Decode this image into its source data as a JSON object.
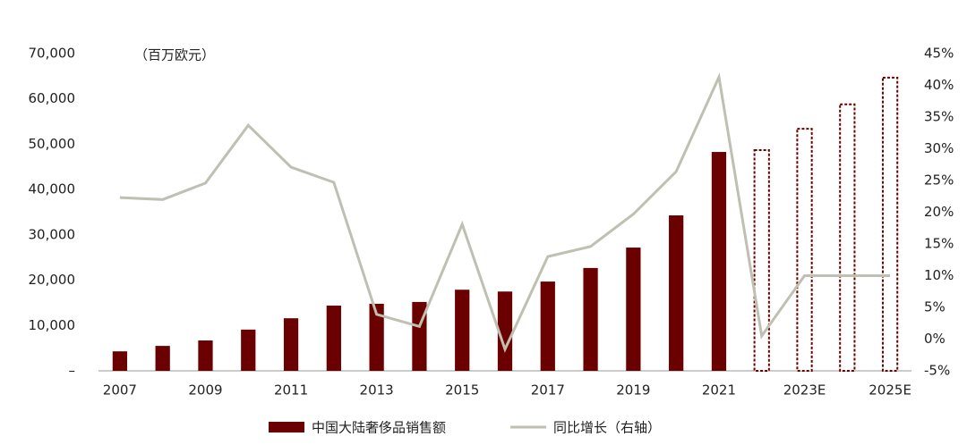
{
  "chart_data": {
    "type": "bar-line",
    "unit_label": "（百万欧元）",
    "categories": [
      "2007",
      null,
      "2009",
      null,
      "2011",
      null,
      "2013",
      null,
      "2015",
      null,
      "2017",
      null,
      "2019",
      null,
      "2021",
      null,
      "2023E",
      null,
      "2025E"
    ],
    "series": [
      {
        "name": "中国大陆奢侈品销售额",
        "type": "bar",
        "color": "#6b0000",
        "values": [
          4300,
          5500,
          6700,
          9100,
          11600,
          14400,
          14800,
          15200,
          17900,
          17500,
          19700,
          22700,
          27200,
          34300,
          48300,
          48700,
          53400,
          58800,
          64700
        ],
        "dashed": [
          false,
          false,
          false,
          false,
          false,
          false,
          false,
          false,
          false,
          false,
          false,
          false,
          false,
          false,
          false,
          true,
          true,
          true,
          true
        ]
      },
      {
        "name": "同比增长（右轴）",
        "type": "line",
        "axis": "y2",
        "color": "#bfbfb2",
        "values": [
          22.3,
          22.0,
          24.6,
          33.7,
          27.1,
          24.7,
          3.9,
          2.0,
          18.1,
          -1.6,
          13.0,
          14.6,
          19.7,
          26.4,
          41.3,
          0.5,
          10,
          10,
          10
        ]
      }
    ],
    "ylim": [
      0,
      70000
    ],
    "yticks": [
      {
        "value": 0,
        "label": "–"
      },
      {
        "value": 10000,
        "label": "10,000"
      },
      {
        "value": 20000,
        "label": "20,000"
      },
      {
        "value": 30000,
        "label": "30,000"
      },
      {
        "value": 40000,
        "label": "40,000"
      },
      {
        "value": 50000,
        "label": "50,000"
      },
      {
        "value": 60000,
        "label": "60,000"
      },
      {
        "value": 70000,
        "label": "70,000"
      }
    ],
    "y2lim": [
      -5,
      45
    ],
    "y2ticks": [
      {
        "value": -5,
        "label": "-5%"
      },
      {
        "value": 0,
        "label": "0%"
      },
      {
        "value": 5,
        "label": "5%"
      },
      {
        "value": 10,
        "label": "10%"
      },
      {
        "value": 15,
        "label": "15%"
      },
      {
        "value": 20,
        "label": "20%"
      },
      {
        "value": 25,
        "label": "25%"
      },
      {
        "value": 30,
        "label": "30%"
      },
      {
        "value": 35,
        "label": "35%"
      },
      {
        "value": 40,
        "label": "40%"
      },
      {
        "value": 45,
        "label": "45%"
      }
    ],
    "legend": "bottom",
    "grid": false
  }
}
